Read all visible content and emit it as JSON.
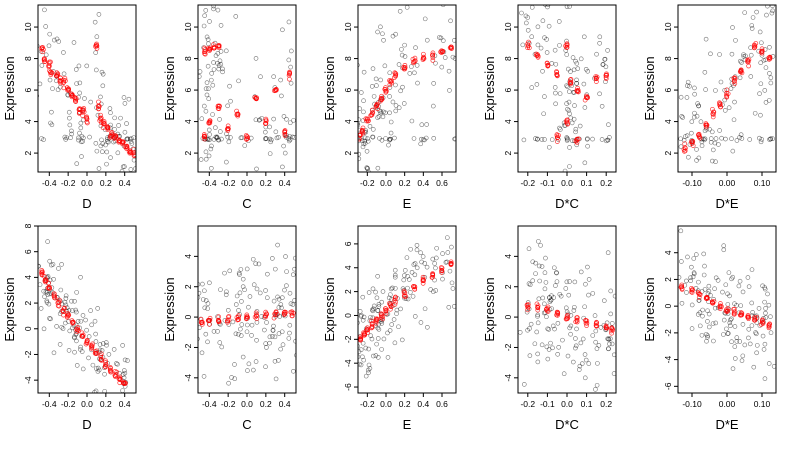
{
  "figure": {
    "ylabel": "Expression",
    "colors": {
      "observed": "#000000",
      "fitted": "#ff0000"
    }
  },
  "chart_data": [
    {
      "type": "scatter",
      "xlabel": "D",
      "xlim": [
        -0.52,
        0.52
      ],
      "ylim": [
        0.8,
        11.4
      ],
      "xticks": [
        "-0.4",
        "-0.2",
        "0.0",
        "0.2",
        "0.4"
      ],
      "xtick_values": [
        -0.4,
        -0.2,
        0,
        0.2,
        0.4
      ],
      "yticks": [
        "2",
        "4",
        "6",
        "8",
        "10"
      ],
      "ytick_values": [
        2,
        4,
        6,
        8,
        10
      ],
      "fitted_points": [
        [
          -0.48,
          8.6
        ],
        [
          -0.45,
          7.9
        ],
        [
          -0.4,
          7.6
        ],
        [
          -0.38,
          7.2
        ],
        [
          -0.32,
          7.0
        ],
        [
          -0.28,
          6.6
        ],
        [
          -0.24,
          6.5
        ],
        [
          -0.2,
          6.0
        ],
        [
          -0.16,
          5.7
        ],
        [
          -0.12,
          5.4
        ],
        [
          -0.08,
          4.8
        ],
        [
          -0.04,
          4.6
        ],
        [
          0.0,
          4.1
        ],
        [
          0.1,
          8.8
        ],
        [
          0.12,
          5.0
        ],
        [
          0.14,
          4.2
        ],
        [
          0.18,
          3.8
        ],
        [
          0.22,
          3.5
        ],
        [
          0.26,
          3.2
        ],
        [
          0.3,
          3.0
        ],
        [
          0.34,
          2.8
        ],
        [
          0.38,
          2.7
        ],
        [
          0.42,
          2.4
        ],
        [
          0.46,
          2.1
        ],
        [
          0.5,
          1.9
        ]
      ],
      "observed_spread": 1.8,
      "observed_floor": 2.9
    },
    {
      "type": "scatter",
      "xlabel": "C",
      "xlim": [
        -0.52,
        0.52
      ],
      "ylim": [
        0.8,
        11.4
      ],
      "xticks": [
        "-0.4",
        "-0.2",
        "0.0",
        "0.2",
        "0.4"
      ],
      "xtick_values": [
        -0.4,
        -0.2,
        0,
        0.2,
        0.4
      ],
      "yticks": [
        "2",
        "4",
        "6",
        "8",
        "10"
      ],
      "ytick_values": [
        2,
        4,
        6,
        8,
        10
      ],
      "fitted_points": [
        [
          -0.45,
          8.5
        ],
        [
          -0.4,
          8.6
        ],
        [
          -0.35,
          8.7
        ],
        [
          -0.3,
          8.8
        ],
        [
          -0.45,
          3.0
        ],
        [
          -0.4,
          4.0
        ],
        [
          -0.3,
          5.0
        ],
        [
          -0.2,
          3.5
        ],
        [
          -0.1,
          4.5
        ],
        [
          0.0,
          3.0
        ],
        [
          0.1,
          5.5
        ],
        [
          0.2,
          4.0
        ],
        [
          0.3,
          6.0
        ],
        [
          0.4,
          3.3
        ],
        [
          0.45,
          7.0
        ]
      ],
      "observed_spread": 2.6,
      "observed_floor": 2.9
    },
    {
      "type": "scatter",
      "xlabel": "E",
      "xlim": [
        -0.3,
        0.75
      ],
      "ylim": [
        0.8,
        11.4
      ],
      "xticks": [
        "-0.2",
        "0.0",
        "0.2",
        "0.4",
        "0.6"
      ],
      "xtick_values": [
        -0.2,
        0,
        0.2,
        0.4,
        0.6
      ],
      "yticks": [
        "2",
        "4",
        "6",
        "8",
        "10"
      ],
      "ytick_values": [
        2,
        4,
        6,
        8,
        10
      ],
      "fitted_points": [
        [
          -0.28,
          3.0
        ],
        [
          -0.25,
          3.5
        ],
        [
          -0.2,
          4.0
        ],
        [
          -0.15,
          4.5
        ],
        [
          -0.1,
          5.0
        ],
        [
          -0.05,
          5.5
        ],
        [
          0.0,
          6.0
        ],
        [
          0.05,
          6.5
        ],
        [
          0.1,
          7.0
        ],
        [
          0.2,
          7.4
        ],
        [
          0.3,
          7.8
        ],
        [
          0.4,
          8.0
        ],
        [
          0.5,
          8.2
        ],
        [
          0.6,
          8.4
        ],
        [
          0.7,
          8.7
        ]
      ],
      "observed_spread": 2.2,
      "observed_floor": 2.9
    },
    {
      "type": "scatter",
      "xlabel": "D*C",
      "xlim": [
        -0.25,
        0.25
      ],
      "ylim": [
        0.8,
        11.4
      ],
      "xticks": [
        "-0.2",
        "-0.1",
        "0.0",
        "0.1",
        "0.2"
      ],
      "xtick_values": [
        -0.2,
        -0.1,
        0,
        0.1,
        0.2
      ],
      "yticks": [
        "2",
        "4",
        "6",
        "8",
        "10"
      ],
      "ytick_values": [
        2,
        4,
        6,
        8,
        10
      ],
      "fitted_points": [
        [
          -0.2,
          8.8
        ],
        [
          -0.15,
          8.2
        ],
        [
          -0.1,
          7.6
        ],
        [
          -0.05,
          7.0
        ],
        [
          0.0,
          8.8
        ],
        [
          0.02,
          6.5
        ],
        [
          0.05,
          6.0
        ],
        [
          0.1,
          5.5
        ],
        [
          0.15,
          6.8
        ],
        [
          0.2,
          7.0
        ],
        [
          -0.05,
          3.0
        ],
        [
          0.0,
          4.0
        ],
        [
          0.05,
          2.8
        ]
      ],
      "observed_spread": 2.6,
      "observed_floor": 2.9
    },
    {
      "type": "scatter",
      "xlabel": "D*E",
      "xlim": [
        -0.14,
        0.14
      ],
      "ylim": [
        0.8,
        11.4
      ],
      "xticks": [
        "-0.10",
        "0.00",
        "0.10"
      ],
      "xtick_values": [
        -0.1,
        0,
        0.1
      ],
      "yticks": [
        "2",
        "4",
        "6",
        "8",
        "10"
      ],
      "ytick_values": [
        2,
        4,
        6,
        8,
        10
      ],
      "fitted_points": [
        [
          -0.12,
          2.3
        ],
        [
          -0.1,
          2.6
        ],
        [
          -0.08,
          3.0
        ],
        [
          -0.06,
          3.8
        ],
        [
          -0.04,
          4.5
        ],
        [
          -0.02,
          5.0
        ],
        [
          0.0,
          5.8
        ],
        [
          0.02,
          6.6
        ],
        [
          0.04,
          7.2
        ],
        [
          0.06,
          7.8
        ],
        [
          0.08,
          8.8
        ],
        [
          0.1,
          8.4
        ],
        [
          0.12,
          8.0
        ]
      ],
      "observed_spread": 2.0,
      "observed_floor": 2.9
    },
    {
      "type": "scatter",
      "xlabel": "D",
      "xlim": [
        -0.52,
        0.52
      ],
      "ylim": [
        -5.0,
        8.0
      ],
      "xticks": [
        "-0.4",
        "-0.2",
        "0.0",
        "0.2",
        "0.4"
      ],
      "xtick_values": [
        -0.4,
        -0.2,
        0,
        0.2,
        0.4
      ],
      "yticks": [
        "-4",
        "-2",
        "0",
        "2",
        "4",
        "6",
        "8"
      ],
      "ytick_values": [
        -4,
        -2,
        0,
        2,
        4,
        6,
        8
      ],
      "fitted_points": [
        [
          -0.48,
          4.4
        ],
        [
          -0.44,
          3.8
        ],
        [
          -0.4,
          3.2
        ],
        [
          -0.35,
          2.6
        ],
        [
          -0.3,
          2.0
        ],
        [
          -0.25,
          1.5
        ],
        [
          -0.2,
          1.0
        ],
        [
          -0.15,
          0.5
        ],
        [
          -0.1,
          0.0
        ],
        [
          -0.05,
          -0.5
        ],
        [
          0.0,
          -1.0
        ],
        [
          0.05,
          -1.4
        ],
        [
          0.1,
          -1.8
        ],
        [
          0.15,
          -2.3
        ],
        [
          0.2,
          -2.8
        ],
        [
          0.25,
          -3.2
        ],
        [
          0.3,
          -3.6
        ],
        [
          0.35,
          -3.9
        ],
        [
          0.4,
          -4.2
        ]
      ],
      "observed_spread": 1.6,
      "observed_floor": null
    },
    {
      "type": "scatter",
      "xlabel": "C",
      "xlim": [
        -0.52,
        0.52
      ],
      "ylim": [
        -5.0,
        6.0
      ],
      "xticks": [
        "-0.4",
        "-0.2",
        "0.0",
        "0.2",
        "0.4"
      ],
      "xtick_values": [
        -0.4,
        -0.2,
        0,
        0.2,
        0.4
      ],
      "yticks": [
        "-4",
        "-2",
        "0",
        "2",
        "4"
      ],
      "ytick_values": [
        -4,
        -2,
        0,
        2,
        4
      ],
      "fitted_points": [
        [
          -0.48,
          -0.35
        ],
        [
          -0.4,
          -0.3
        ],
        [
          -0.3,
          -0.25
        ],
        [
          -0.2,
          -0.15
        ],
        [
          -0.1,
          -0.1
        ],
        [
          0.0,
          0.0
        ],
        [
          0.1,
          0.05
        ],
        [
          0.2,
          0.1
        ],
        [
          0.3,
          0.15
        ],
        [
          0.4,
          0.2
        ],
        [
          0.48,
          0.25
        ]
      ],
      "observed_spread": 2.0,
      "observed_floor": null
    },
    {
      "type": "scatter",
      "xlabel": "E",
      "xlim": [
        -0.3,
        0.75
      ],
      "ylim": [
        -6.5,
        7.5
      ],
      "xticks": [
        "-0.2",
        "0.0",
        "0.2",
        "0.4",
        "0.6"
      ],
      "xtick_values": [
        -0.2,
        0,
        0.2,
        0.4,
        0.6
      ],
      "yticks": [
        "-6",
        "-4",
        "-2",
        "0",
        "2",
        "4",
        "6"
      ],
      "ytick_values": [
        -6,
        -4,
        -2,
        0,
        2,
        4,
        6
      ],
      "fitted_points": [
        [
          -0.28,
          -2.0
        ],
        [
          -0.24,
          -1.6
        ],
        [
          -0.2,
          -1.2
        ],
        [
          -0.15,
          -0.8
        ],
        [
          -0.1,
          -0.4
        ],
        [
          -0.05,
          0.0
        ],
        [
          0.0,
          0.4
        ],
        [
          0.05,
          0.8
        ],
        [
          0.1,
          1.2
        ],
        [
          0.2,
          1.8
        ],
        [
          0.3,
          2.4
        ],
        [
          0.4,
          2.9
        ],
        [
          0.5,
          3.4
        ],
        [
          0.6,
          3.8
        ],
        [
          0.7,
          4.3
        ]
      ],
      "observed_spread": 1.8,
      "observed_floor": null
    },
    {
      "type": "scatter",
      "xlabel": "D*C",
      "xlim": [
        -0.25,
        0.25
      ],
      "ylim": [
        -5.0,
        6.0
      ],
      "xticks": [
        "-0.2",
        "-0.1",
        "0.0",
        "0.1",
        "0.2"
      ],
      "xtick_values": [
        -0.2,
        -0.1,
        0,
        0.1,
        0.2
      ],
      "yticks": [
        "-4",
        "-2",
        "0",
        "2",
        "4"
      ],
      "ytick_values": [
        -4,
        -2,
        0,
        2,
        4
      ],
      "fitted_points": [
        [
          -0.2,
          0.8
        ],
        [
          -0.15,
          0.6
        ],
        [
          -0.1,
          0.4
        ],
        [
          -0.05,
          0.2
        ],
        [
          0.0,
          0.0
        ],
        [
          0.05,
          -0.2
        ],
        [
          0.1,
          -0.4
        ],
        [
          0.15,
          -0.5
        ],
        [
          0.2,
          -0.7
        ],
        [
          0.23,
          -0.8
        ]
      ],
      "observed_spread": 2.2,
      "observed_floor": null
    },
    {
      "type": "scatter",
      "xlabel": "D*E",
      "xlim": [
        -0.14,
        0.14
      ],
      "ylim": [
        -6.5,
        6.0
      ],
      "xticks": [
        "-0.10",
        "0.00",
        "0.10"
      ],
      "xtick_values": [
        -0.1,
        0,
        0.1
      ],
      "yticks": [
        "-6",
        "-4",
        "-2",
        "0",
        "2",
        "4"
      ],
      "ytick_values": [
        -6,
        -4,
        -2,
        0,
        2,
        4
      ],
      "fitted_points": [
        [
          -0.13,
          1.5
        ],
        [
          -0.1,
          1.2
        ],
        [
          -0.08,
          0.9
        ],
        [
          -0.06,
          0.6
        ],
        [
          -0.04,
          0.3
        ],
        [
          -0.02,
          0.0
        ],
        [
          0.0,
          -0.2
        ],
        [
          0.02,
          -0.4
        ],
        [
          0.04,
          -0.6
        ],
        [
          0.06,
          -0.8
        ],
        [
          0.08,
          -1.0
        ],
        [
          0.1,
          -1.2
        ],
        [
          0.12,
          -1.4
        ]
      ],
      "observed_spread": 2.0,
      "observed_floor": null
    }
  ]
}
